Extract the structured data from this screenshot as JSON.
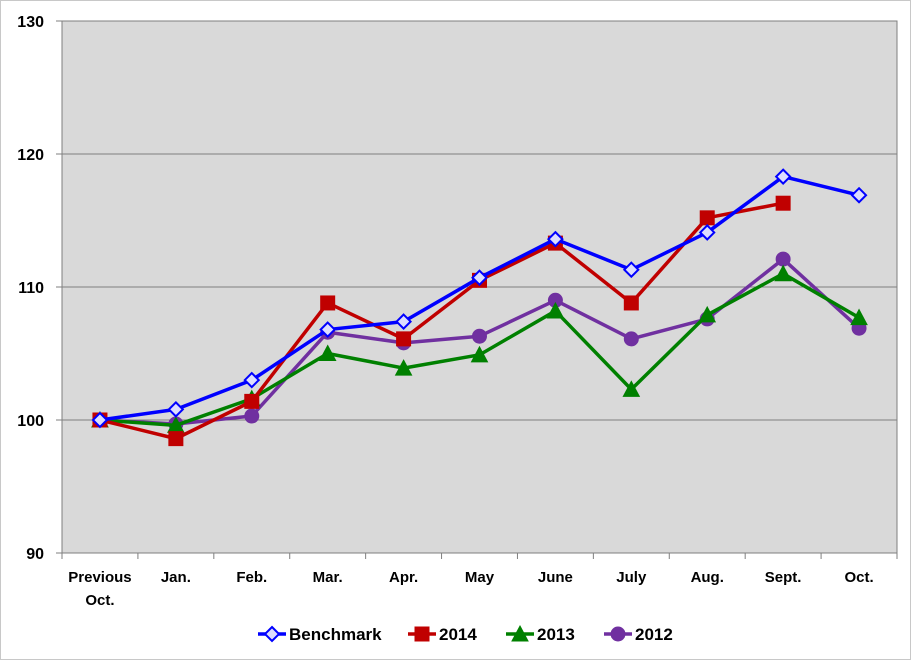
{
  "chart_data": {
    "type": "line",
    "title": "",
    "xlabel": "",
    "ylabel": "",
    "categories": [
      [
        "Previous",
        "Oct."
      ],
      [
        "Jan."
      ],
      [
        "Feb."
      ],
      [
        "Mar."
      ],
      [
        "Apr."
      ],
      [
        "May"
      ],
      [
        "June"
      ],
      [
        "July"
      ],
      [
        "Aug."
      ],
      [
        "Sept."
      ],
      [
        "Oct."
      ]
    ],
    "ylim": [
      90,
      130
    ],
    "yticks": [
      90,
      100,
      110,
      120,
      130
    ],
    "grid": true,
    "legend_position": "bottom",
    "plot_background": "#d9d9d9",
    "series": [
      {
        "name": "Benchmark",
        "color": "#0000ff",
        "marker": "diamond",
        "values": [
          100,
          100.8,
          103,
          106.8,
          107.4,
          110.7,
          113.6,
          111.3,
          114.1,
          118.3,
          116.9
        ]
      },
      {
        "name": "2014",
        "color": "#c00000",
        "marker": "square",
        "values": [
          100,
          98.6,
          101.4,
          108.8,
          106.1,
          110.5,
          113.3,
          108.8,
          115.2,
          116.3,
          null
        ]
      },
      {
        "name": "2013",
        "color": "#008000",
        "marker": "triangle",
        "values": [
          100,
          99.6,
          101.6,
          105,
          103.9,
          104.9,
          108.2,
          102.3,
          107.9,
          111,
          107.7
        ]
      },
      {
        "name": "2012",
        "color": "#7030a0",
        "marker": "circle",
        "values": [
          100,
          99.7,
          100.3,
          106.6,
          105.8,
          106.3,
          109,
          106.1,
          107.6,
          112.1,
          106.9
        ]
      }
    ]
  }
}
